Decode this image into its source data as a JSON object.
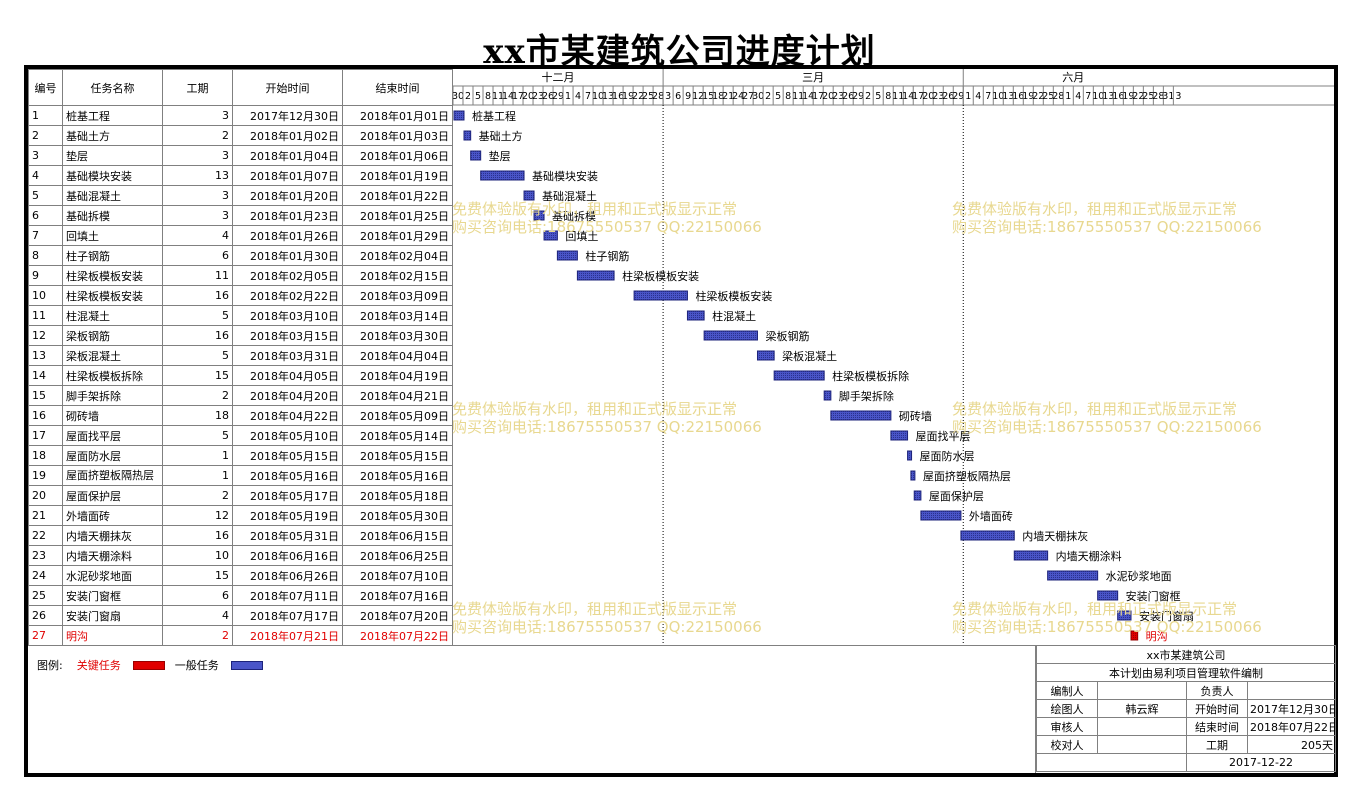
{
  "title": "xx市某建筑公司进度计划",
  "table": {
    "headers": [
      "编号",
      "任务名称",
      "工期",
      "开始时间",
      "结束时间"
    ],
    "rows": [
      {
        "id": "1",
        "name": "桩基工程",
        "duration": "3",
        "start": "2017年12月30日",
        "end": "2018年01月01日",
        "critical": false
      },
      {
        "id": "2",
        "name": "基础土方",
        "duration": "2",
        "start": "2018年01月02日",
        "end": "2018年01月03日",
        "critical": false
      },
      {
        "id": "3",
        "name": "垫层",
        "duration": "3",
        "start": "2018年01月04日",
        "end": "2018年01月06日",
        "critical": false
      },
      {
        "id": "4",
        "name": "基础模块安装",
        "duration": "13",
        "start": "2018年01月07日",
        "end": "2018年01月19日",
        "critical": false
      },
      {
        "id": "5",
        "name": "基础混凝土",
        "duration": "3",
        "start": "2018年01月20日",
        "end": "2018年01月22日",
        "critical": false
      },
      {
        "id": "6",
        "name": "基础拆模",
        "duration": "3",
        "start": "2018年01月23日",
        "end": "2018年01月25日",
        "critical": false
      },
      {
        "id": "7",
        "name": "回填土",
        "duration": "4",
        "start": "2018年01月26日",
        "end": "2018年01月29日",
        "critical": false
      },
      {
        "id": "8",
        "name": "柱子钢筋",
        "duration": "6",
        "start": "2018年01月30日",
        "end": "2018年02月04日",
        "critical": false
      },
      {
        "id": "9",
        "name": "柱梁板模板安装",
        "duration": "11",
        "start": "2018年02月05日",
        "end": "2018年02月15日",
        "critical": false
      },
      {
        "id": "10",
        "name": "柱梁板模板安装",
        "duration": "16",
        "start": "2018年02月22日",
        "end": "2018年03月09日",
        "critical": false
      },
      {
        "id": "11",
        "name": "柱混凝土",
        "duration": "5",
        "start": "2018年03月10日",
        "end": "2018年03月14日",
        "critical": false
      },
      {
        "id": "12",
        "name": "梁板钢筋",
        "duration": "16",
        "start": "2018年03月15日",
        "end": "2018年03月30日",
        "critical": false
      },
      {
        "id": "13",
        "name": "梁板混凝土",
        "duration": "5",
        "start": "2018年03月31日",
        "end": "2018年04月04日",
        "critical": false
      },
      {
        "id": "14",
        "name": "柱梁板模板拆除",
        "duration": "15",
        "start": "2018年04月05日",
        "end": "2018年04月19日",
        "critical": false
      },
      {
        "id": "15",
        "name": "脚手架拆除",
        "duration": "2",
        "start": "2018年04月20日",
        "end": "2018年04月21日",
        "critical": false
      },
      {
        "id": "16",
        "name": "砌砖墙",
        "duration": "18",
        "start": "2018年04月22日",
        "end": "2018年05月09日",
        "critical": false
      },
      {
        "id": "17",
        "name": "屋面找平层",
        "duration": "5",
        "start": "2018年05月10日",
        "end": "2018年05月14日",
        "critical": false
      },
      {
        "id": "18",
        "name": "屋面防水层",
        "duration": "1",
        "start": "2018年05月15日",
        "end": "2018年05月15日",
        "critical": false
      },
      {
        "id": "19",
        "name": "屋面挤塑板隔热层",
        "duration": "1",
        "start": "2018年05月16日",
        "end": "2018年05月16日",
        "critical": false
      },
      {
        "id": "20",
        "name": "屋面保护层",
        "duration": "2",
        "start": "2018年05月17日",
        "end": "2018年05月18日",
        "critical": false
      },
      {
        "id": "21",
        "name": "外墙面砖",
        "duration": "12",
        "start": "2018年05月19日",
        "end": "2018年05月30日",
        "critical": false
      },
      {
        "id": "22",
        "name": "内墙天棚抹灰",
        "duration": "16",
        "start": "2018年05月31日",
        "end": "2018年06月15日",
        "critical": false
      },
      {
        "id": "23",
        "name": "内墙天棚涂料",
        "duration": "10",
        "start": "2018年06月16日",
        "end": "2018年06月25日",
        "critical": false
      },
      {
        "id": "24",
        "name": "水泥砂浆地面",
        "duration": "15",
        "start": "2018年06月26日",
        "end": "2018年07月10日",
        "critical": false
      },
      {
        "id": "25",
        "name": "安装门窗框",
        "duration": "6",
        "start": "2018年07月11日",
        "end": "2018年07月16日",
        "critical": false
      },
      {
        "id": "26",
        "name": "安装门窗扇",
        "duration": "4",
        "start": "2018年07月17日",
        "end": "2018年07月20日",
        "critical": false
      },
      {
        "id": "27",
        "name": "明沟",
        "duration": "2",
        "start": "2018年07月21日",
        "end": "2018年07月22日",
        "critical": true
      }
    ]
  },
  "timeline": {
    "months": [
      "十二月",
      "三月",
      "六月"
    ],
    "day_labels": [
      "30",
      "2",
      "5",
      "8",
      "11",
      "14",
      "17",
      "20",
      "23",
      "26",
      "29",
      "1",
      "4",
      "7",
      "10",
      "13",
      "16",
      "19",
      "22",
      "25",
      "28",
      "3",
      "6",
      "9",
      "12",
      "15",
      "18",
      "21",
      "24",
      "27",
      "30",
      "2",
      "5",
      "8",
      "11",
      "14",
      "17",
      "20",
      "23",
      "26",
      "29",
      "2",
      "5",
      "8",
      "11",
      "14",
      "17",
      "20",
      "23",
      "26",
      "29",
      "1",
      "4",
      "7",
      "10",
      "13",
      "16",
      "19",
      "22",
      "25",
      "28",
      "1",
      "4",
      "7",
      "10",
      "13",
      "16",
      "19",
      "22",
      "25",
      "28",
      "31",
      "3"
    ]
  },
  "watermark": {
    "line1": "免费体验版有水印，租用和正式版显示正常",
    "line2": "购买咨询电话:18675550537 QQ:22150066"
  },
  "legend": {
    "label": "图例:",
    "critical": "关键任务",
    "normal": "一般任务"
  },
  "colors": {
    "critical": "#e00000",
    "normal": "#4a55c8",
    "normal_border": "#1d237a",
    "watermark": "#e8d890"
  },
  "info": {
    "company": "xx市某建筑公司",
    "note": "本计划由易利项目管理软件编制",
    "compiler_label": "编制人",
    "compiler": "",
    "responsible_label": "负责人",
    "responsible": "",
    "drafter_label": "绘图人",
    "drafter": "韩云辉",
    "start_label": "开始时间",
    "start": "2017年12月30日",
    "reviewer_label": "审核人",
    "reviewer": "",
    "end_label": "结束时间",
    "end": "2018年07月22日",
    "checker_label": "校对人",
    "checker": "",
    "duration_label": "工期",
    "duration": "205天",
    "date": "2017-12-22"
  }
}
